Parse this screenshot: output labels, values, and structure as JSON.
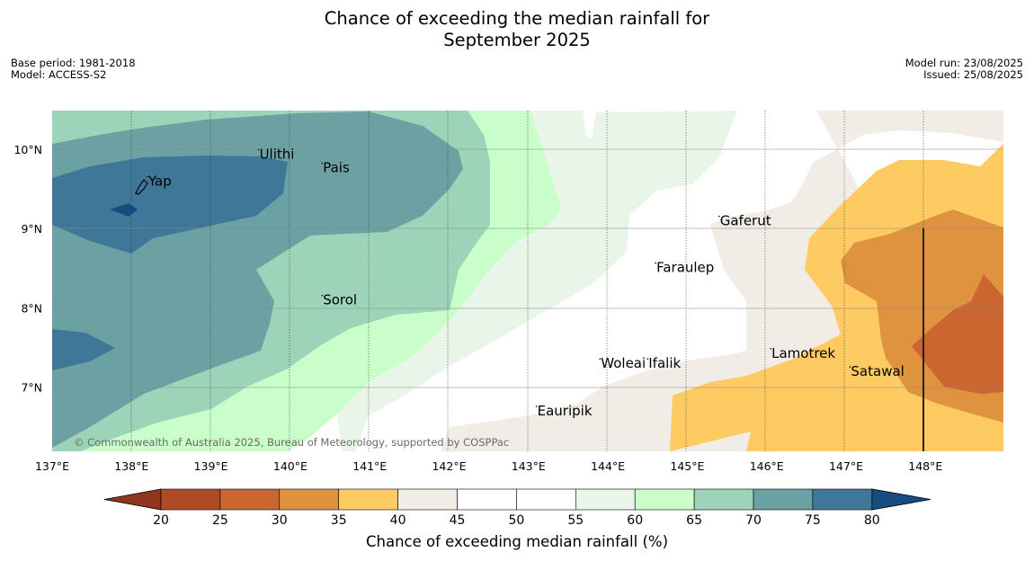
{
  "title": {
    "line1": "Chance of exceeding the median rainfall for",
    "line2": "September 2025"
  },
  "meta_left": {
    "base_period": "Base period: 1981-2018",
    "model": "Model: ACCESS-S2"
  },
  "meta_right": {
    "model_run": "Model run: 23/08/2025",
    "issued": "Issued: 25/08/2025"
  },
  "map": {
    "lon_range": [
      137,
      149
    ],
    "lat_range": [
      6.2,
      10.5
    ],
    "lon_ticks": [
      "137°E",
      "138°E",
      "139°E",
      "140°E",
      "141°E",
      "142°E",
      "143°E",
      "144°E",
      "145°E",
      "146°E",
      "147°E",
      "148°E"
    ],
    "lat_ticks": [
      "10°N",
      "9°N",
      "8°N",
      "7°N"
    ],
    "places": [
      {
        "name": "Yap",
        "lon": 138.2,
        "lat": 9.53
      },
      {
        "name": "Ulithi",
        "lon": 139.6,
        "lat": 9.87
      },
      {
        "name": "Pais",
        "lon": 140.4,
        "lat": 9.7
      },
      {
        "name": "Gaferut",
        "lon": 145.4,
        "lat": 9.03
      },
      {
        "name": "Faraulep",
        "lon": 144.6,
        "lat": 8.44
      },
      {
        "name": "Sorol",
        "lon": 140.4,
        "lat": 8.03
      },
      {
        "name": "Lamotrek",
        "lon": 146.05,
        "lat": 7.36
      },
      {
        "name": "Woleai",
        "lon": 143.9,
        "lat": 7.23
      },
      {
        "name": "Ifalik",
        "lon": 144.5,
        "lat": 7.23
      },
      {
        "name": "Satawal",
        "lon": 147.05,
        "lat": 7.13
      },
      {
        "name": "Eauripik",
        "lon": 143.1,
        "lat": 6.63
      }
    ],
    "copyright": "© Commonwealth of Australia 2025, Bureau of Meteorology, supported by COSPPac"
  },
  "colorbar": {
    "title": "Chance of exceeding median rainfall (%)",
    "ticks": [
      "20",
      "25",
      "30",
      "35",
      "40",
      "45",
      "50",
      "55",
      "60",
      "65",
      "70",
      "75",
      "80"
    ],
    "colors": [
      "#b04a26",
      "#cb6631",
      "#e0933f",
      "#fecb63",
      "#f1ece6",
      "#ffffff",
      "#ffffff",
      "#e9f5e9",
      "#c9fdc9",
      "#9dd3b8",
      "#6ba1a2",
      "#3e7798"
    ],
    "under_color": "#8f3620",
    "over_color": "#164c80"
  }
}
